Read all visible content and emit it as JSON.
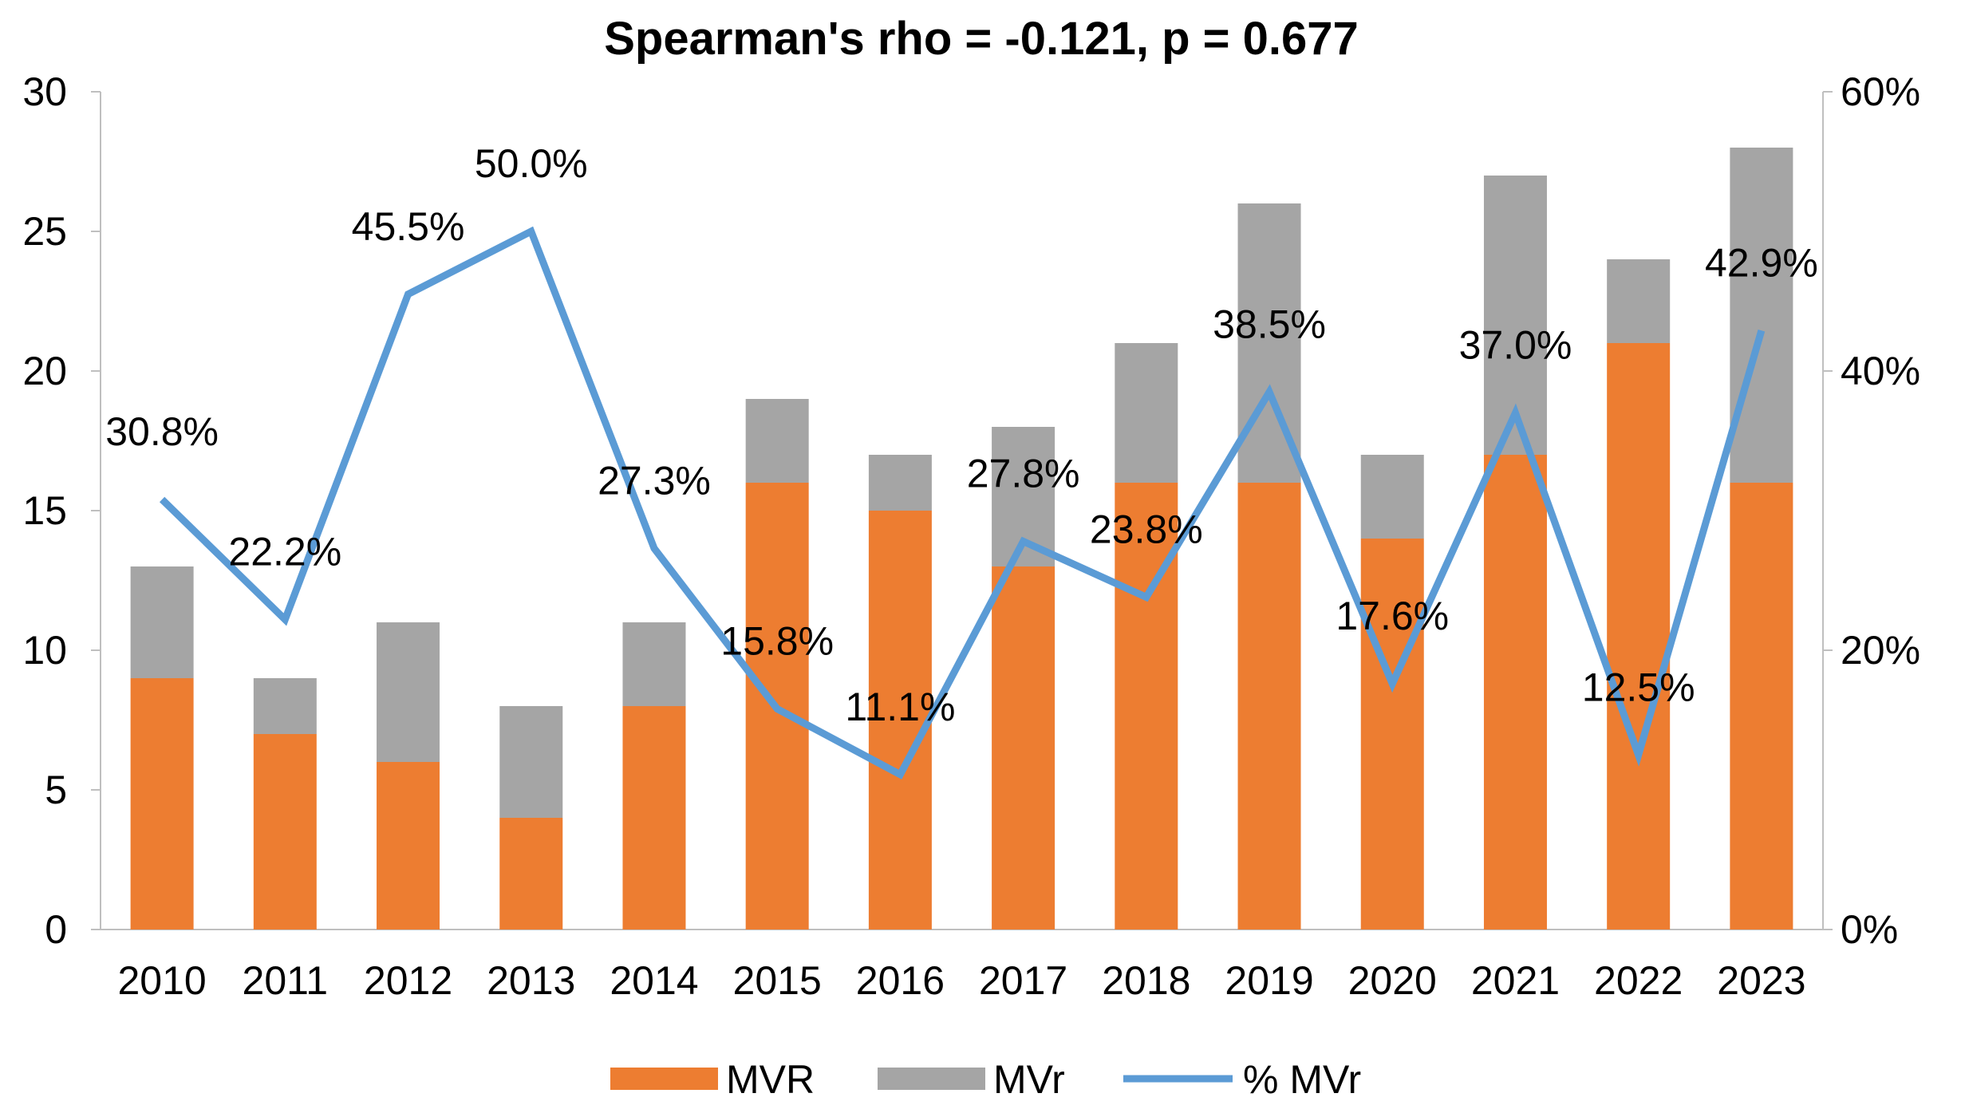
{
  "chart_data": {
    "type": "bar",
    "title": "Spearman's rho = -0.121, p = 0.677",
    "categories": [
      "2010",
      "2011",
      "2012",
      "2013",
      "2014",
      "2015",
      "2016",
      "2017",
      "2018",
      "2019",
      "2020",
      "2021",
      "2022",
      "2023"
    ],
    "series": [
      {
        "name": "MVR",
        "kind": "stacked-bar",
        "color": "#ED7D31",
        "values": [
          9,
          7,
          6,
          4,
          8,
          16,
          15,
          13,
          16,
          16,
          14,
          17,
          21,
          16
        ]
      },
      {
        "name": "MVr",
        "kind": "stacked-bar",
        "color": "#A5A5A5",
        "values": [
          4,
          2,
          5,
          4,
          3,
          3,
          2,
          5,
          5,
          10,
          3,
          10,
          3,
          12
        ]
      },
      {
        "name": "% MVr",
        "kind": "line",
        "axis": "right",
        "color": "#5B9BD5",
        "values": [
          30.8,
          22.2,
          45.5,
          50.0,
          27.3,
          15.8,
          11.1,
          27.8,
          23.8,
          38.5,
          17.6,
          37.0,
          12.5,
          42.9
        ],
        "labels": [
          "30.8%",
          "22.2%",
          "45.5%",
          "50.0%",
          "27.3%",
          "15.8%",
          "11.1%",
          "27.8%",
          "23.8%",
          "38.5%",
          "17.6%",
          "37.0%",
          "12.5%",
          "42.9%"
        ]
      }
    ],
    "ylim": [
      0,
      30
    ],
    "yticks": [
      "0",
      "5",
      "10",
      "15",
      "20",
      "25",
      "30"
    ],
    "y2lim": [
      0,
      60
    ],
    "y2ticks": [
      "0%",
      "20%",
      "40%",
      "60%"
    ],
    "legend": "bottom",
    "legend_labels": [
      "MVR",
      "MVr",
      "% MVr"
    ]
  }
}
